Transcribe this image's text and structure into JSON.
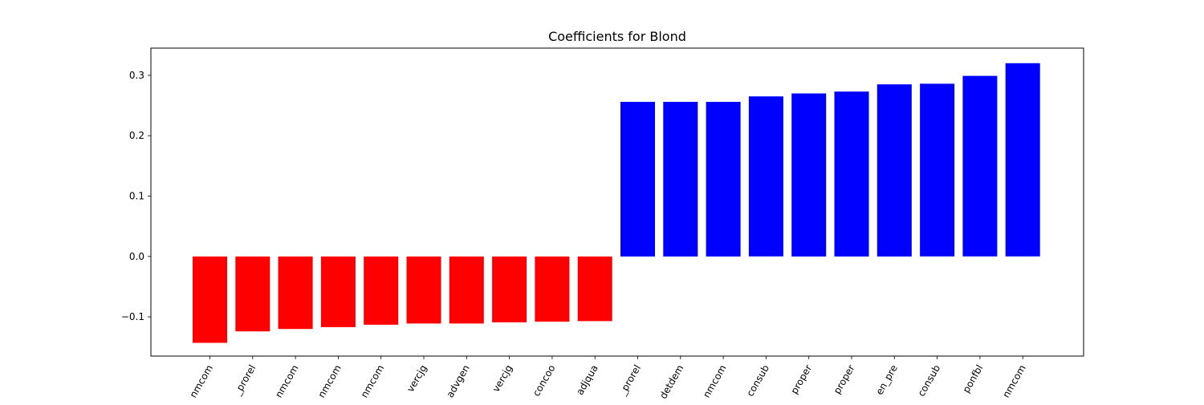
{
  "chart_data": {
    "type": "bar",
    "title": "Coefficients for Blond",
    "xlabel": "",
    "ylabel": "",
    "ylim": [
      -0.165,
      0.345
    ],
    "y_ticks": [
      -0.1,
      0.0,
      0.1,
      0.2,
      0.3
    ],
    "y_tick_labels": [
      "−0.1",
      "0.0",
      "0.1",
      "0.2",
      "0.3"
    ],
    "grid": false,
    "categories": [
      "nmcom",
      "_prorel",
      "nmcom",
      "nmcom",
      "nmcom",
      "vercjg",
      "advgen",
      "vercjg",
      "concoo",
      "adjqua",
      "_prorel",
      "detdem",
      "nmcom",
      "consub",
      "proper",
      "proper",
      "en_pre",
      "consub",
      "ponfbl",
      "nmcom"
    ],
    "values": [
      -0.143,
      -0.124,
      -0.12,
      -0.117,
      -0.113,
      -0.111,
      -0.111,
      -0.109,
      -0.108,
      -0.107,
      0.256,
      0.256,
      0.256,
      0.265,
      0.27,
      0.273,
      0.285,
      0.286,
      0.299,
      0.32
    ],
    "colors": {
      "negative": "#ff0000",
      "positive": "#0000ff"
    }
  }
}
